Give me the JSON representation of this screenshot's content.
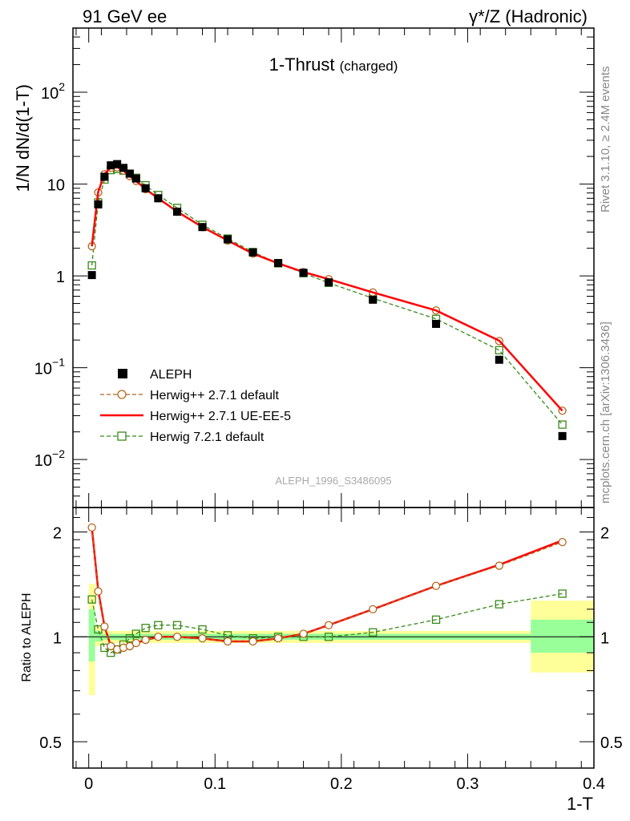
{
  "header": {
    "left": "91 GeV ee",
    "right": "γ*/Z (Hadronic)"
  },
  "side_text": {
    "rivet": "Rivet 3.1.10, ≥ 2.4M events",
    "site": "mcplots.cern.ch [arXiv:1306.3436]"
  },
  "watermark": "ALEPH_1996_S3486095",
  "chart_data": [
    {
      "type": "scatter",
      "panel": "main",
      "title": "1-Thrust",
      "title_suffix": "(charged)",
      "ylabel": "1/N dN/d(1-T)",
      "xlabel": "",
      "xlim": [
        -0.0125,
        0.4
      ],
      "ylim": [
        0.003,
        500
      ],
      "yscale": "log",
      "yticks": [
        {
          "v": 0.01,
          "base": "10",
          "exp": "−2"
        },
        {
          "v": 0.1,
          "base": "10",
          "exp": "−1"
        },
        {
          "v": 1,
          "base": "1",
          "exp": ""
        },
        {
          "v": 10,
          "base": "10",
          "exp": ""
        },
        {
          "v": 100,
          "base": "10",
          "exp": "2"
        }
      ],
      "legend_position": "lower-left",
      "series": [
        {
          "name": "ALEPH",
          "style": "data",
          "color": "#000000",
          "x": [
            0.0025,
            0.0075,
            0.0125,
            0.0175,
            0.0225,
            0.0275,
            0.0325,
            0.0375,
            0.045,
            0.055,
            0.07,
            0.09,
            0.11,
            0.13,
            0.15,
            0.17,
            0.19,
            0.225,
            0.275,
            0.325,
            0.375
          ],
          "y": [
            1.02,
            6.0,
            12.0,
            16.0,
            16.5,
            15.0,
            13.0,
            11.5,
            9.0,
            7.0,
            5.0,
            3.4,
            2.5,
            1.8,
            1.38,
            1.08,
            0.85,
            0.55,
            0.3,
            0.122,
            0.018
          ]
        },
        {
          "name": "Herwig++ 2.7.1 default",
          "style": "circle-dashed",
          "color": "#b5651d",
          "x": [
            0.0025,
            0.0075,
            0.0125,
            0.0175,
            0.0225,
            0.0275,
            0.0325,
            0.0375,
            0.045,
            0.055,
            0.07,
            0.09,
            0.11,
            0.13,
            0.15,
            0.17,
            0.19,
            0.225,
            0.275,
            0.325,
            0.375
          ],
          "y": [
            2.1,
            8.1,
            12.8,
            15.0,
            15.2,
            14.0,
            12.2,
            10.8,
            8.8,
            7.0,
            5.0,
            3.4,
            2.43,
            1.75,
            1.37,
            1.1,
            0.92,
            0.66,
            0.42,
            0.195,
            0.034
          ]
        },
        {
          "name": "Herwig++ 2.7.1 UE-EE-5",
          "style": "solid",
          "color": "#ff0000",
          "x": [
            0.0025,
            0.0075,
            0.0125,
            0.0175,
            0.0225,
            0.0275,
            0.0325,
            0.0375,
            0.045,
            0.055,
            0.07,
            0.09,
            0.11,
            0.13,
            0.15,
            0.17,
            0.19,
            0.225,
            0.275,
            0.325,
            0.375
          ],
          "y": [
            2.1,
            8.2,
            12.9,
            15.1,
            15.2,
            14.0,
            12.2,
            10.8,
            8.8,
            7.0,
            5.0,
            3.4,
            2.43,
            1.75,
            1.37,
            1.1,
            0.92,
            0.66,
            0.42,
            0.197,
            0.034
          ]
        },
        {
          "name": "Herwig 7.2.1 default",
          "style": "square-dashed",
          "color": "#3a8a1a",
          "x": [
            0.0025,
            0.0075,
            0.0125,
            0.0175,
            0.0225,
            0.0275,
            0.0325,
            0.0375,
            0.045,
            0.055,
            0.07,
            0.09,
            0.11,
            0.13,
            0.15,
            0.17,
            0.19,
            0.225,
            0.275,
            0.325,
            0.375
          ],
          "y": [
            1.3,
            6.3,
            11.2,
            14.2,
            14.6,
            14.0,
            12.8,
            11.7,
            9.7,
            7.6,
            5.5,
            3.6,
            2.55,
            1.82,
            1.37,
            1.07,
            0.84,
            0.57,
            0.34,
            0.155,
            0.024
          ]
        }
      ]
    },
    {
      "type": "line",
      "panel": "ratio",
      "ylabel": "Ratio to ALEPH",
      "xlabel": "1-T",
      "xlim": [
        -0.0125,
        0.4
      ],
      "ylim": [
        0.42,
        2.35
      ],
      "yscale": "log",
      "yticks": [
        {
          "v": 0.5,
          "label": "0.5"
        },
        {
          "v": 1,
          "label": "1"
        },
        {
          "v": 2,
          "label": "2"
        }
      ],
      "xticks": [
        {
          "v": 0,
          "label": "0"
        },
        {
          "v": 0.1,
          "label": "0.1"
        },
        {
          "v": 0.2,
          "label": "0.2"
        },
        {
          "v": 0.3,
          "label": "0.3"
        },
        {
          "v": 0.4,
          "label": "0.4"
        }
      ],
      "uncertainty_bands": [
        {
          "x0": 0.0,
          "x1": 0.005,
          "stat": [
            0.85,
            1.2
          ],
          "total": [
            0.68,
            1.42
          ]
        },
        {
          "x0": 0.005,
          "x1": 0.01,
          "stat": [
            0.97,
            1.04
          ],
          "total": [
            0.94,
            1.07
          ]
        },
        {
          "x0": 0.01,
          "x1": 0.35,
          "stat": [
            0.98,
            1.02
          ],
          "total": [
            0.96,
            1.04
          ]
        },
        {
          "x0": 0.35,
          "x1": 0.4,
          "stat": [
            0.9,
            1.12
          ],
          "total": [
            0.79,
            1.27
          ]
        }
      ],
      "series": [
        {
          "name": "Herwig++ 2.7.1 default",
          "style": "circle-dashed",
          "color": "#b5651d",
          "x": [
            0.0025,
            0.0075,
            0.0125,
            0.0175,
            0.0225,
            0.0275,
            0.0325,
            0.0375,
            0.045,
            0.055,
            0.07,
            0.09,
            0.11,
            0.13,
            0.15,
            0.17,
            0.19,
            0.225,
            0.275,
            0.325,
            0.375
          ],
          "y": [
            2.06,
            1.35,
            1.07,
            0.94,
            0.92,
            0.93,
            0.94,
            0.96,
            0.98,
            1.0,
            1.0,
            0.99,
            0.97,
            0.97,
            0.99,
            1.02,
            1.08,
            1.2,
            1.4,
            1.6,
            1.87
          ]
        },
        {
          "name": "Herwig++ 2.7.1 UE-EE-5",
          "style": "solid",
          "color": "#ff0000",
          "x": [
            0.0025,
            0.0075,
            0.0125,
            0.0175,
            0.0225,
            0.0275,
            0.0325,
            0.0375,
            0.045,
            0.055,
            0.07,
            0.09,
            0.11,
            0.13,
            0.15,
            0.17,
            0.19,
            0.225,
            0.275,
            0.325,
            0.375
          ],
          "y": [
            2.06,
            1.36,
            1.07,
            0.94,
            0.92,
            0.93,
            0.94,
            0.96,
            0.98,
            1.0,
            1.0,
            0.99,
            0.97,
            0.97,
            0.99,
            1.02,
            1.08,
            1.2,
            1.4,
            1.61,
            1.89
          ]
        },
        {
          "name": "Herwig 7.2.1 default",
          "style": "square-dashed",
          "color": "#3a8a1a",
          "x": [
            0.0025,
            0.0075,
            0.0125,
            0.0175,
            0.0225,
            0.0275,
            0.0325,
            0.0375,
            0.045,
            0.055,
            0.07,
            0.09,
            0.11,
            0.13,
            0.15,
            0.17,
            0.19,
            0.225,
            0.275,
            0.325,
            0.375
          ],
          "y": [
            1.28,
            1.05,
            0.93,
            0.9,
            0.92,
            0.95,
            0.99,
            1.02,
            1.06,
            1.08,
            1.08,
            1.05,
            1.01,
            0.99,
            1.0,
            1.0,
            1.0,
            1.03,
            1.12,
            1.24,
            1.33
          ]
        }
      ]
    }
  ]
}
